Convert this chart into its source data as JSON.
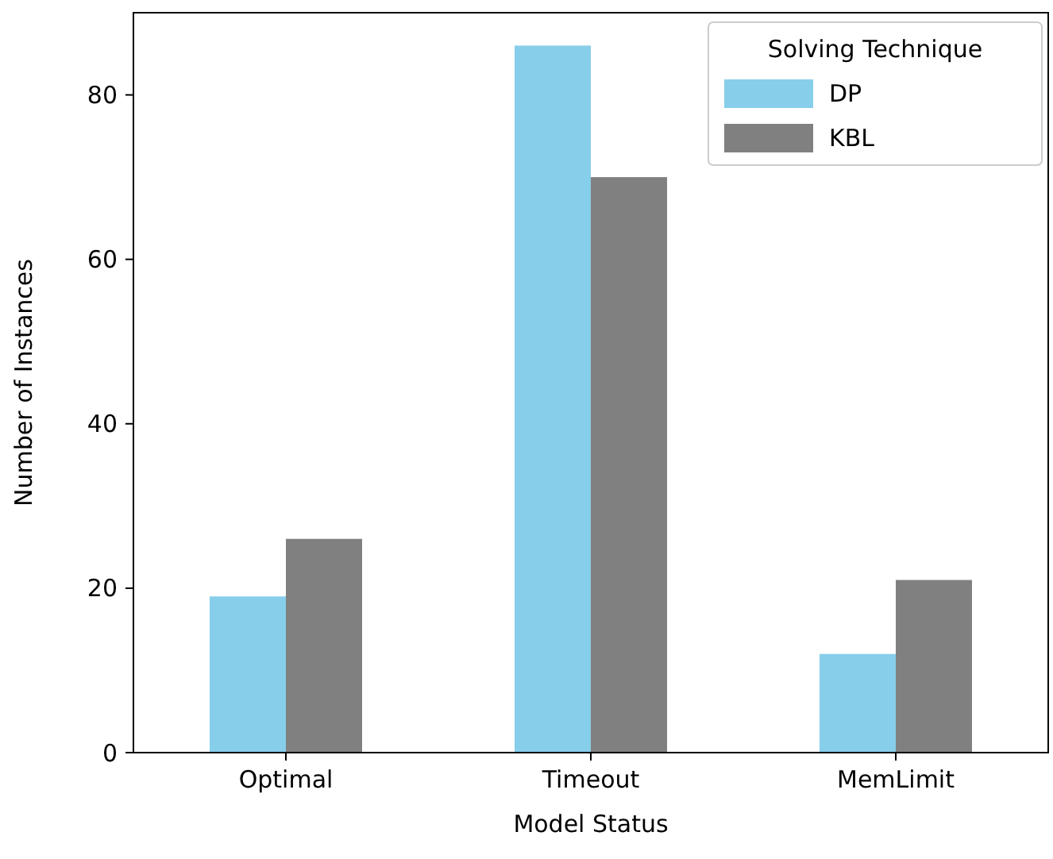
{
  "chart_data": {
    "type": "bar",
    "xlabel": "Model Status",
    "ylabel": "Number of Instances",
    "legend_title": "Solving Technique",
    "categories": [
      "Optimal",
      "Timeout",
      "MemLimit"
    ],
    "series": [
      {
        "name": "DP",
        "color": "#87ceeb",
        "values": [
          19,
          86,
          12
        ]
      },
      {
        "name": "KBL",
        "color": "#808080",
        "values": [
          26,
          70,
          21
        ]
      }
    ],
    "ylim": [
      0,
      90
    ],
    "yticks": [
      0,
      20,
      40,
      60,
      80
    ],
    "legend": "top right"
  }
}
